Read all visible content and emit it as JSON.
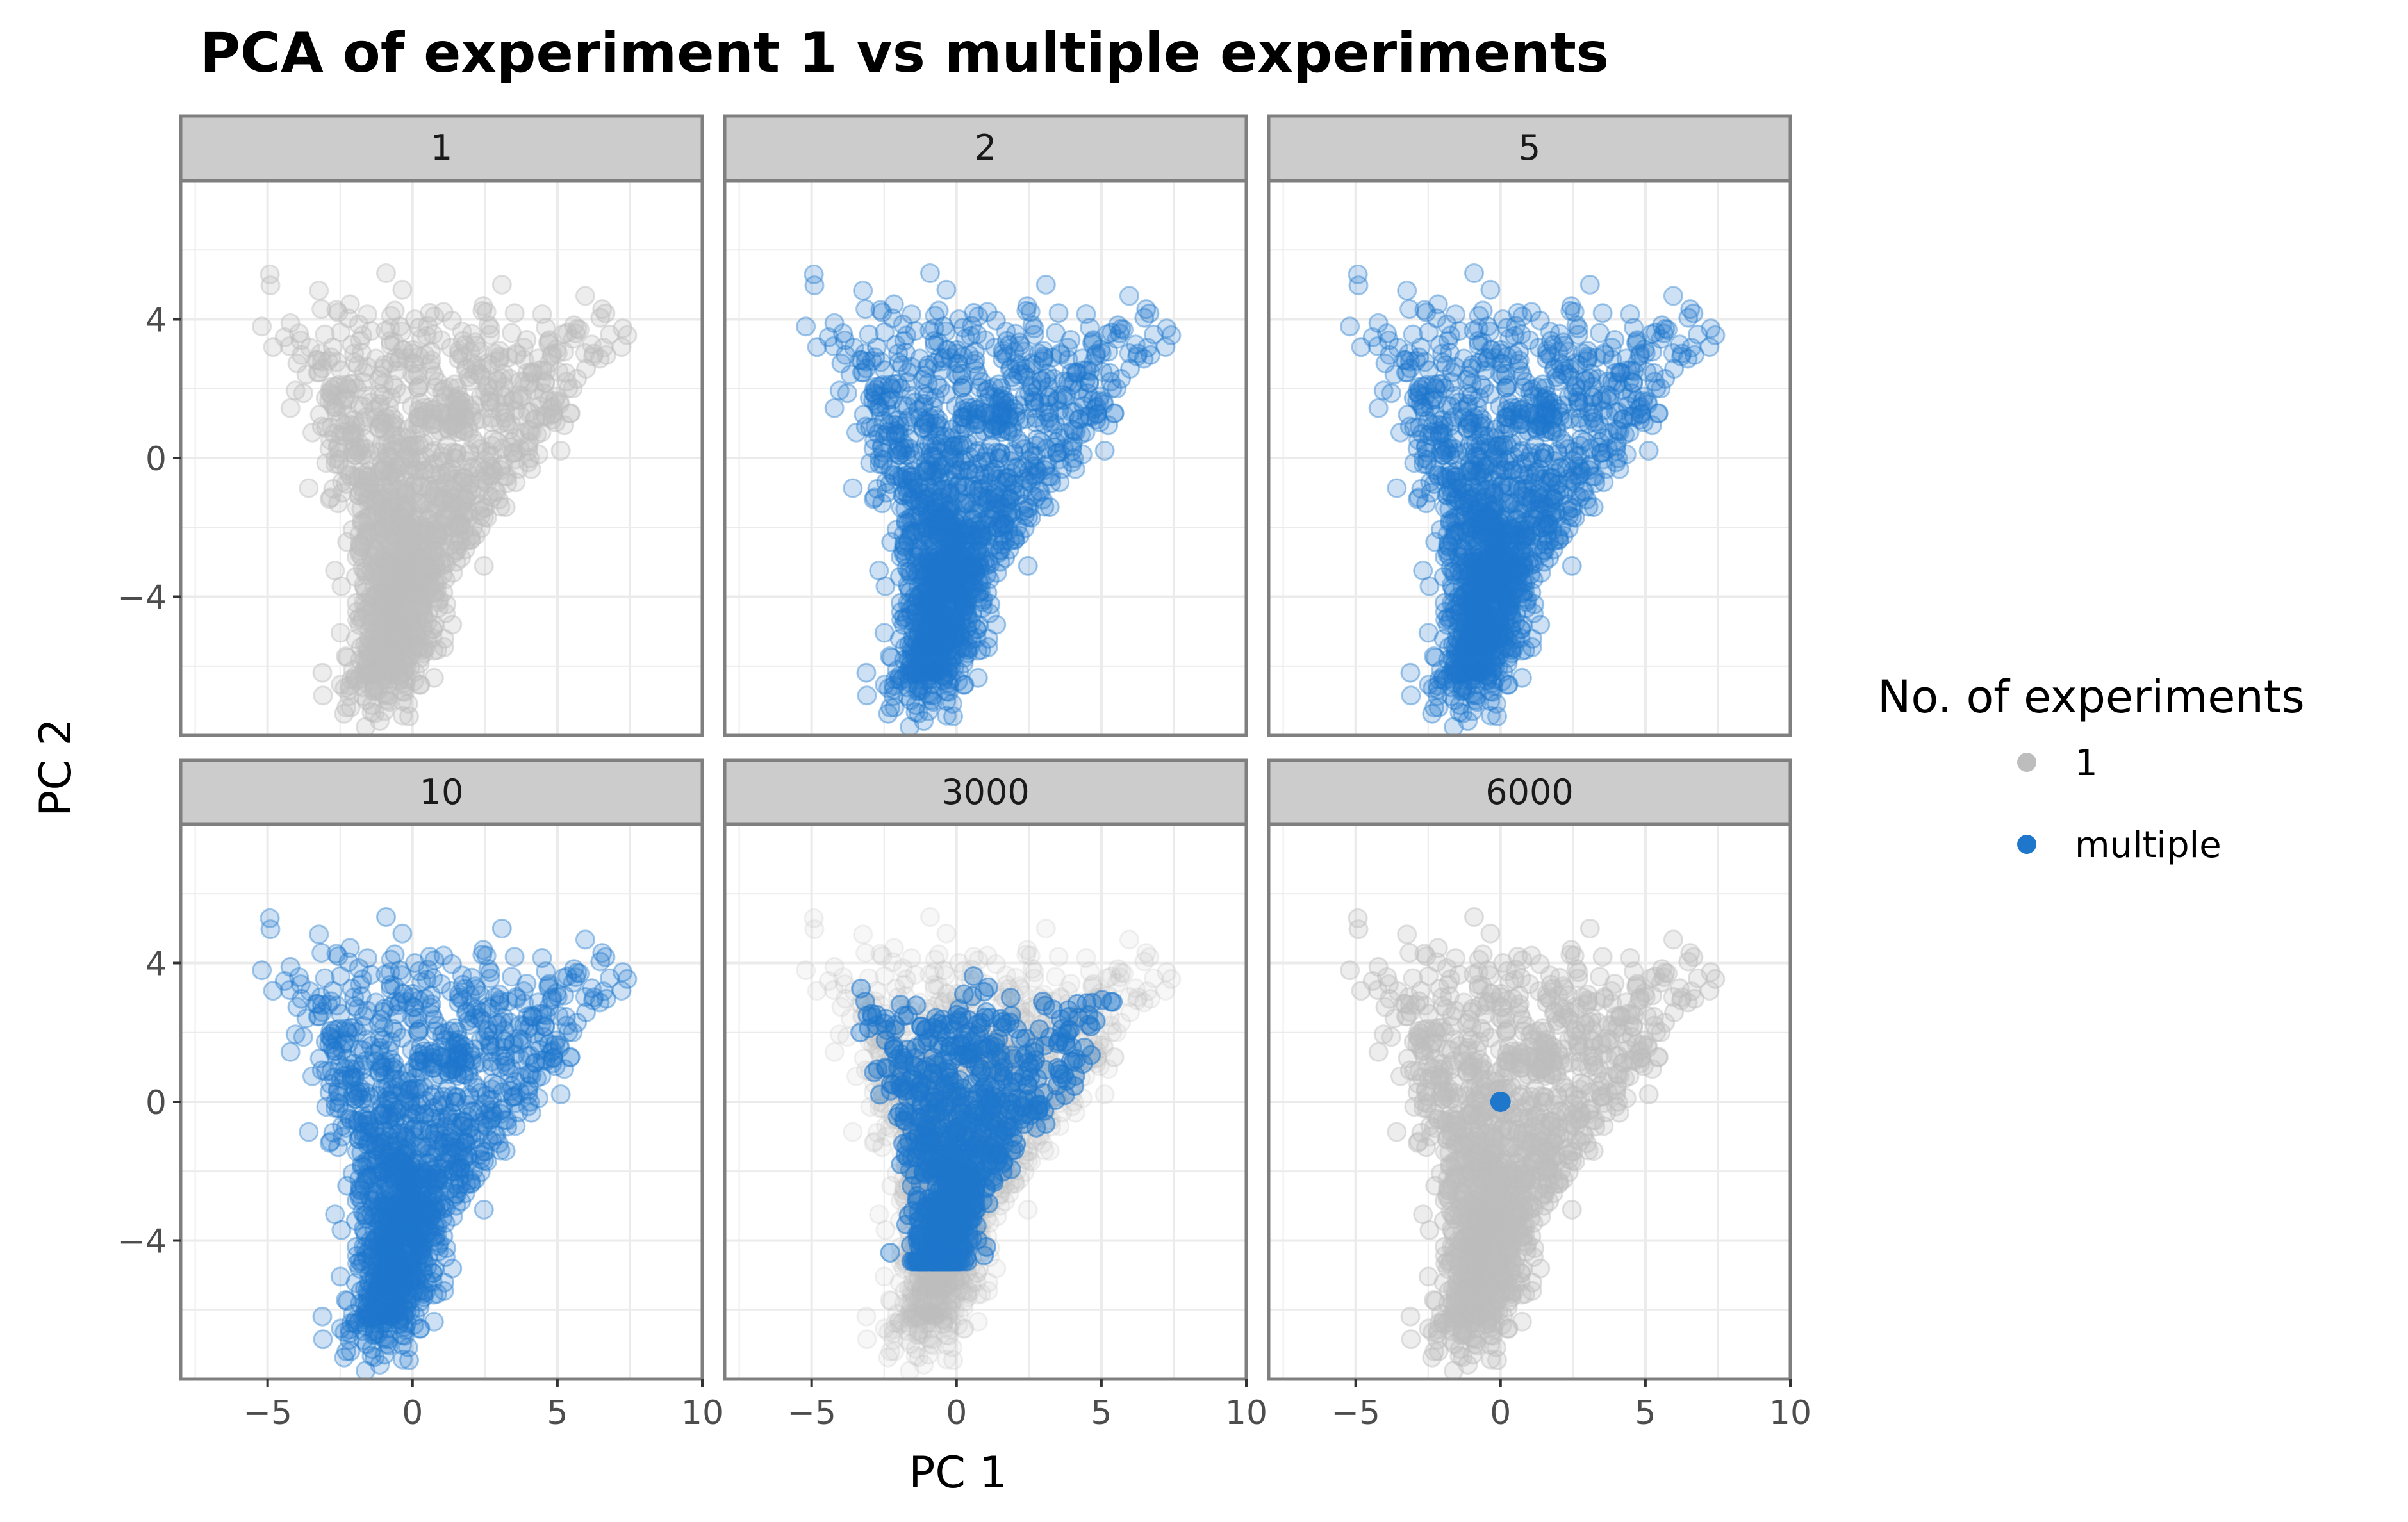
{
  "chart_data": {
    "type": "scatter",
    "title": "PCA of experiment 1 vs multiple experiments",
    "xlabel": "PC 1",
    "ylabel": "PC 2",
    "xlim": [
      -8,
      10
    ],
    "ylim": [
      -8,
      8
    ],
    "x_ticks": [
      {
        "value": -5,
        "label": "−5"
      },
      {
        "value": 0,
        "label": "0"
      },
      {
        "value": 5,
        "label": "5"
      },
      {
        "value": 10,
        "label": "10"
      }
    ],
    "y_ticks": [
      {
        "value": 4,
        "label": "4"
      },
      {
        "value": 0,
        "label": "0"
      },
      {
        "value": -4,
        "label": "−4"
      }
    ],
    "grid": true,
    "legend": {
      "title": "No. of experiments",
      "position": "right",
      "entries": [
        {
          "label": "1",
          "color": "#bdbdbd"
        },
        {
          "label": "multiple",
          "color": "#1f77cc"
        }
      ]
    },
    "panels": [
      {
        "label": "1",
        "layers": [
          "gray"
        ]
      },
      {
        "label": "2",
        "layers": [
          "blue_full"
        ]
      },
      {
        "label": "5",
        "layers": [
          "blue_full"
        ]
      },
      {
        "label": "10",
        "layers": [
          "blue_full"
        ]
      },
      {
        "label": "3000",
        "layers": [
          "gray_faint",
          "blue_center"
        ]
      },
      {
        "label": "6000",
        "layers": [
          "gray",
          "blue_point"
        ],
        "highlight_point": {
          "x": 0,
          "y": 0
        }
      }
    ],
    "distribution": {
      "description_values": {
        "x_range": [
          -7,
          9.5
        ],
        "y_range": [
          -7,
          7
        ]
      }
    }
  },
  "colors": {
    "gray": "#bdbdbd",
    "blue": "#1f77cc",
    "strip_bg": "#cccccc",
    "strip_border": "#7f7f7f",
    "grid": "#ebebeb",
    "axis_text": "#4d4d4d"
  }
}
